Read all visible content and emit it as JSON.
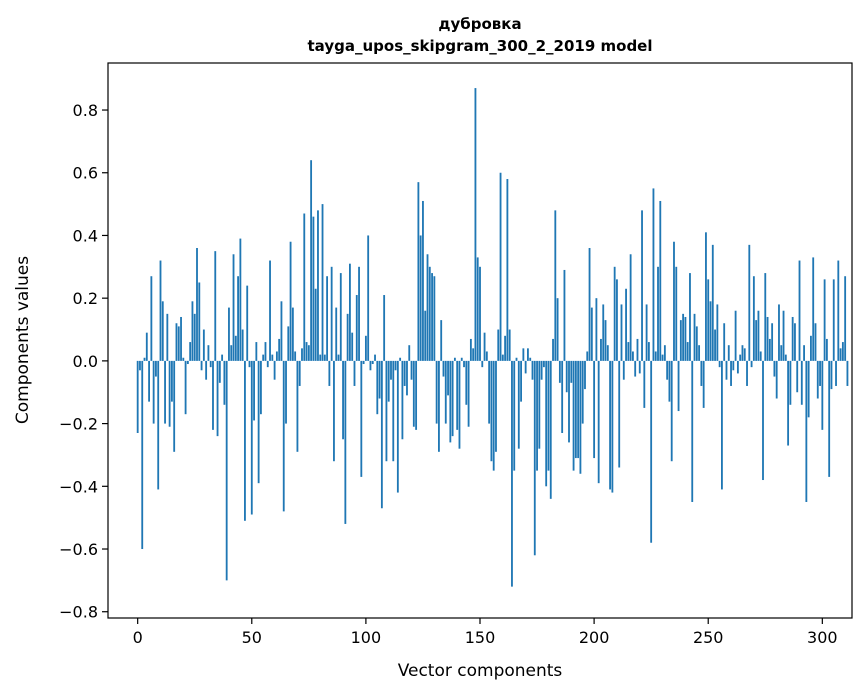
{
  "chart_data": {
    "type": "bar",
    "title": "дубровка",
    "subtitle": "tayga_upos_skipgram_300_2_2019 model",
    "xlabel": "Vector components",
    "ylabel": "Components values",
    "xlim": [
      -13,
      313
    ],
    "ylim": [
      -0.82,
      0.95
    ],
    "xticks": [
      0,
      50,
      100,
      150,
      200,
      250,
      300
    ],
    "yticks": [
      -0.8,
      -0.6,
      -0.4,
      -0.2,
      0.0,
      0.2,
      0.4,
      0.6,
      0.8
    ],
    "xtick_labels": [
      "0",
      "50",
      "100",
      "150",
      "200",
      "250",
      "300"
    ],
    "ytick_labels": [
      "−0.8",
      "−0.6",
      "−0.4",
      "−0.2",
      "0.0",
      "0.2",
      "0.4",
      "0.6",
      "0.8"
    ],
    "grid": false,
    "color": "#1f77b4",
    "x_start": 0,
    "values": [
      -0.23,
      -0.03,
      -0.6,
      0.01,
      0.09,
      -0.13,
      0.27,
      -0.2,
      -0.05,
      -0.41,
      0.32,
      0.19,
      -0.2,
      0.15,
      -0.21,
      -0.13,
      -0.29,
      0.12,
      0.11,
      0.14,
      0.01,
      -0.17,
      -0.01,
      0.06,
      0.19,
      0.15,
      0.36,
      0.25,
      -0.03,
      0.1,
      -0.06,
      0.05,
      -0.02,
      -0.22,
      0.35,
      -0.24,
      -0.07,
      0.02,
      -0.14,
      -0.7,
      0.17,
      0.05,
      0.34,
      0.08,
      0.27,
      0.39,
      0.1,
      -0.51,
      0.24,
      -0.02,
      -0.49,
      -0.19,
      0.06,
      -0.39,
      -0.17,
      0.02,
      0.06,
      -0.02,
      0.32,
      0.02,
      -0.06,
      0.03,
      0.07,
      0.19,
      -0.48,
      -0.2,
      0.11,
      0.38,
      0.17,
      0.03,
      -0.29,
      -0.08,
      0.04,
      0.47,
      0.06,
      0.05,
      0.64,
      0.46,
      0.23,
      0.48,
      0.02,
      0.5,
      0.02,
      0.27,
      -0.08,
      0.3,
      -0.32,
      0.17,
      0.02,
      0.28,
      -0.25,
      -0.52,
      0.15,
      0.31,
      0.09,
      -0.08,
      0.21,
      0.3,
      -0.37,
      -0.01,
      0.08,
      0.4,
      -0.03,
      -0.01,
      0.02,
      -0.17,
      -0.12,
      -0.47,
      0.21,
      -0.32,
      -0.13,
      -0.06,
      -0.32,
      -0.03,
      -0.42,
      0.01,
      -0.25,
      -0.08,
      -0.11,
      0.05,
      -0.06,
      -0.21,
      -0.22,
      0.57,
      0.4,
      0.51,
      0.16,
      0.34,
      0.3,
      0.28,
      0.27,
      -0.2,
      -0.29,
      0.13,
      -0.05,
      -0.2,
      -0.11,
      -0.26,
      -0.24,
      0.01,
      -0.22,
      -0.28,
      0.01,
      -0.02,
      -0.14,
      -0.21,
      0.07,
      0.04,
      0.87,
      0.33,
      0.3,
      -0.02,
      0.09,
      0.03,
      -0.2,
      -0.32,
      -0.35,
      -0.29,
      0.1,
      0.6,
      0.02,
      0.08,
      0.58,
      0.1,
      -0.72,
      -0.35,
      0.01,
      -0.28,
      -0.13,
      0.04,
      -0.04,
      0.04,
      0.01,
      -0.06,
      -0.62,
      -0.35,
      -0.28,
      -0.06,
      -0.02,
      -0.4,
      -0.35,
      -0.44,
      0.07,
      0.48,
      0.2,
      -0.07,
      -0.23,
      0.29,
      -0.1,
      -0.26,
      -0.07,
      -0.35,
      -0.31,
      -0.31,
      -0.36,
      -0.2,
      -0.09,
      0.03,
      0.36,
      0.17,
      -0.31,
      0.2,
      -0.39,
      0.07,
      0.18,
      0.13,
      0.05,
      -0.41,
      -0.42,
      0.3,
      0.26,
      -0.34,
      0.18,
      -0.06,
      0.23,
      0.06,
      0.34,
      0.03,
      -0.05,
      0.07,
      -0.04,
      0.48,
      -0.15,
      0.18,
      0.06,
      -0.58,
      0.55,
      0.03,
      0.3,
      0.51,
      0.02,
      0.05,
      -0.06,
      -0.13,
      -0.32,
      0.38,
      0.3,
      -0.16,
      0.13,
      0.15,
      0.14,
      0.06,
      0.28,
      -0.45,
      0.15,
      0.11,
      0.05,
      -0.08,
      -0.15,
      0.41,
      0.26,
      0.19,
      0.37,
      0.1,
      0.18,
      -0.02,
      -0.41,
      0.12,
      -0.06,
      0.05,
      -0.08,
      -0.03,
      0.16,
      -0.04,
      0.02,
      0.05,
      0.04,
      -0.08,
      0.37,
      -0.02,
      0.27,
      0.13,
      0.16,
      0.03,
      -0.38,
      0.28,
      0.14,
      0.07,
      0.12,
      -0.05,
      -0.12,
      0.18,
      0.05,
      0.16,
      0.02,
      -0.27,
      -0.14,
      0.14,
      0.12,
      -0.1,
      0.32,
      -0.14,
      0.05,
      -0.45,
      -0.18,
      0.08,
      0.33,
      0.12,
      -0.12,
      -0.08,
      -0.22,
      0.26,
      0.07,
      -0.37,
      -0.09,
      0.26,
      -0.08,
      0.32,
      0.04,
      0.06,
      0.27,
      -0.08
    ]
  }
}
